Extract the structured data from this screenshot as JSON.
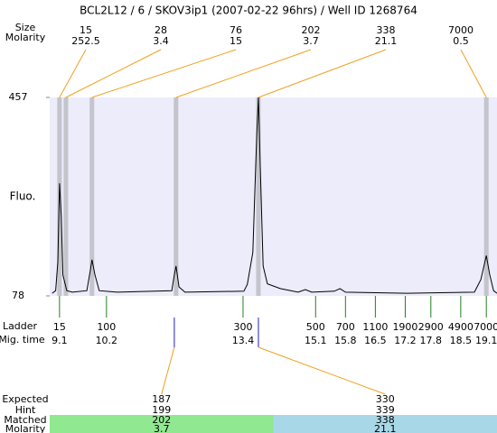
{
  "chart_data": {
    "type": "line",
    "title": "BCL2L12 / 6 / SKOV3ip1 (2007-02-22 96hrs) / Well ID 1268764",
    "ylabel": "Fluo.",
    "ylim": [
      78,
      457
    ],
    "yticks": [
      78,
      457
    ],
    "xlim": [
      8.87,
      19.35
    ],
    "color": "#000000",
    "plot_color": "#ececfa",
    "band_color": "#c4c4cc",
    "leader_color": "#f0a020",
    "x": [
      8.93,
      9.01,
      9.06,
      9.1,
      9.14,
      9.18,
      9.27,
      9.4,
      9.74,
      9.82,
      9.86,
      9.93,
      10.03,
      10.46,
      11.73,
      11.79,
      11.83,
      11.9,
      12.04,
      13.42,
      13.5,
      13.63,
      13.72,
      13.76,
      13.8,
      13.87,
      13.97,
      14.27,
      14.69,
      14.86,
      15.01,
      15.54,
      15.67,
      15.8,
      17.24,
      18.82,
      18.97,
      19.1,
      19.18,
      19.27,
      19.35
    ],
    "values": [
      83,
      88,
      143,
      293,
      230,
      118,
      88,
      85,
      88,
      126,
      147,
      118,
      88,
      85,
      88,
      118,
      135,
      95,
      85,
      87,
      100,
      161,
      385,
      457,
      333,
      135,
      101,
      92,
      85,
      90,
      85,
      87,
      92,
      85,
      83,
      85,
      109,
      155,
      118,
      88,
      83
    ],
    "peaks": {
      "labels": [
        "Size",
        "Molarity"
      ],
      "sizes": [
        15,
        28,
        76,
        202,
        338,
        7000
      ],
      "molarities": [
        252.5,
        3.4,
        15,
        3.7,
        21.1,
        0.5
      ],
      "x": [
        9.1,
        9.25,
        9.86,
        11.83,
        13.76,
        19.1
      ]
    },
    "ladder": {
      "labels": [
        "Ladder",
        "Mig. time"
      ],
      "color": "#208020",
      "sizes": [
        15,
        100,
        300,
        500,
        700,
        1100,
        1900,
        2900,
        4900,
        7000
      ],
      "times": [
        9.1,
        10.2,
        13.4,
        15.1,
        15.8,
        16.5,
        17.2,
        17.8,
        18.5,
        19.1
      ]
    },
    "expected": {
      "labels": [
        "Expected",
        "Hint",
        "Matched",
        "Molarity"
      ],
      "color": "#ee2020",
      "tick_color": "#2020c0",
      "expected": [
        187,
        330
      ],
      "hint": [
        199,
        339
      ],
      "matched": [
        202,
        338
      ],
      "molarity": [
        3.7,
        21.1
      ],
      "x": [
        11.79,
        13.76
      ],
      "colors": [
        "#90e890",
        "#a8d8e8"
      ]
    }
  }
}
